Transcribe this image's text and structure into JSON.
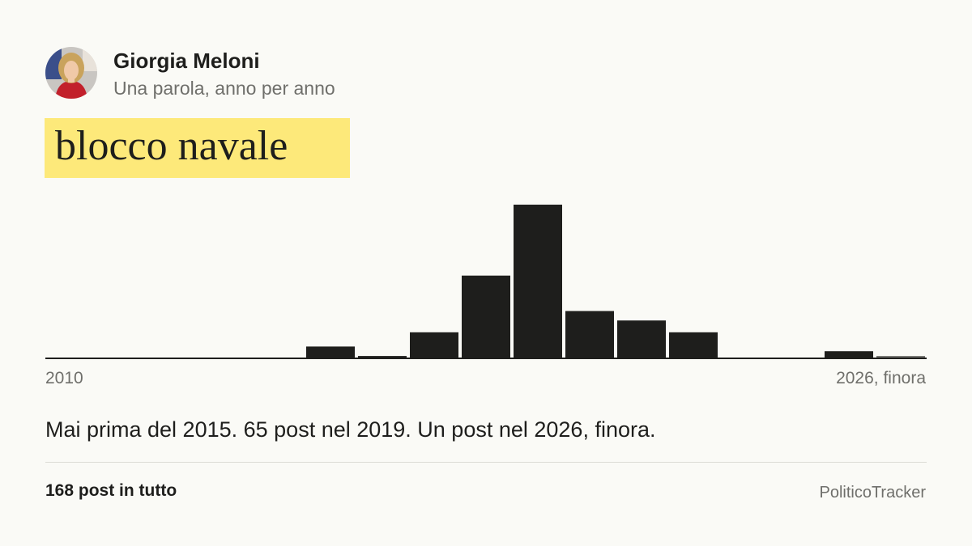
{
  "header": {
    "name": "Giorgia Meloni",
    "subtitle": "Una parola, anno per anno"
  },
  "keyword": "blocco navale",
  "chart_data": {
    "type": "bar",
    "categories": [
      "2010",
      "2011",
      "2012",
      "2013",
      "2014",
      "2015",
      "2016",
      "2017",
      "2018",
      "2019",
      "2020",
      "2021",
      "2022",
      "2023",
      "2024",
      "2025",
      "2026"
    ],
    "values": [
      0,
      0,
      0,
      0,
      0,
      5,
      1,
      11,
      35,
      65,
      20,
      16,
      11,
      0,
      0,
      3,
      1
    ],
    "partial_year": "2026",
    "tick_labels": [
      "2010",
      "2026, finora"
    ],
    "colors": {
      "bar": "#1e1e1c",
      "partial_bar": "#6f6f6b",
      "baseline": "#1e1e1c"
    }
  },
  "summary": "Mai prima del 2015. 65 post nel 2019. Un post nel 2026, finora.",
  "footer": {
    "total": "168 post in tutto",
    "brand": "PoliticoTracker"
  },
  "colors": {
    "background": "#fafaf6",
    "highlight": "#fde97a",
    "text": "#1e1e1c",
    "muted": "#6f6f6b"
  }
}
